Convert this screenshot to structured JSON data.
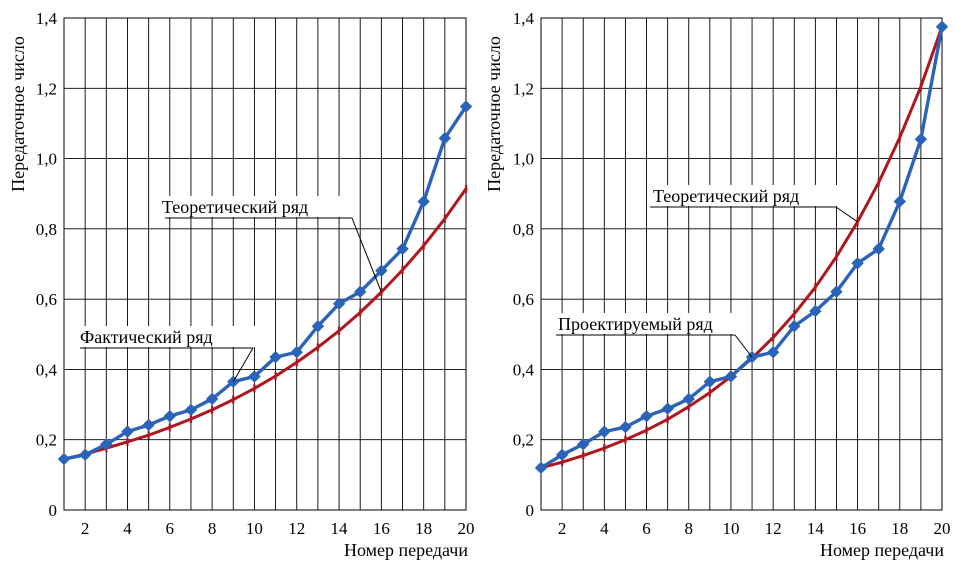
{
  "chart_data": [
    {
      "type": "line",
      "title": "",
      "xlabel": "Номер передачи",
      "ylabel": "Передаточное число",
      "xlim": [
        1,
        20
      ],
      "ylim": [
        0,
        1.4
      ],
      "grid": true,
      "x_ticks": [
        2,
        4,
        6,
        8,
        10,
        12,
        14,
        16,
        18,
        20
      ],
      "x_tick_labels": [
        "2",
        "4",
        "6",
        "8",
        "10",
        "12",
        "14",
        "16",
        "18",
        "20"
      ],
      "y_ticks": [
        0,
        0.2,
        0.4,
        0.6,
        0.8,
        1.0,
        1.2,
        1.4
      ],
      "y_tick_labels": [
        "0",
        "0,2",
        "0,4",
        "0,6",
        "0,8",
        "1,0",
        "1,2",
        "1,4"
      ],
      "x": [
        1,
        2,
        3,
        4,
        5,
        6,
        7,
        8,
        9,
        10,
        11,
        12,
        13,
        14,
        15,
        16,
        17,
        18,
        19,
        20
      ],
      "series": [
        {
          "name": "Теоретический ряд",
          "color": "#b0161e",
          "marker": "dash",
          "values": [
            0.145,
            0.159,
            0.176,
            0.194,
            0.213,
            0.235,
            0.259,
            0.285,
            0.314,
            0.346,
            0.381,
            0.42,
            0.463,
            0.51,
            0.562,
            0.62,
            0.683,
            0.752,
            0.829,
            0.914
          ]
        },
        {
          "name": "Фактический ряд",
          "color": "#2a63b8",
          "marker": "diamond",
          "values": [
            0.145,
            0.157,
            0.187,
            0.223,
            0.242,
            0.267,
            0.285,
            0.316,
            0.365,
            0.38,
            0.435,
            0.449,
            0.523,
            0.587,
            0.621,
            0.681,
            0.743,
            0.878,
            1.058,
            1.148
          ]
        }
      ],
      "annotations": [
        {
          "text": "Теоретический ряд",
          "points_to": "Теоретический ряд",
          "at_x": 16
        },
        {
          "text": "Фактический ряд",
          "points_to": "Фактический ряд",
          "at_x": 9
        }
      ]
    },
    {
      "type": "line",
      "title": "",
      "xlabel": "Номер передачи",
      "ylabel": "Передаточное число",
      "xlim": [
        1,
        20
      ],
      "ylim": [
        0,
        1.4
      ],
      "grid": true,
      "x_ticks": [
        2,
        4,
        6,
        8,
        10,
        12,
        14,
        16,
        18,
        20
      ],
      "x_tick_labels": [
        "2",
        "4",
        "6",
        "8",
        "10",
        "12",
        "14",
        "16",
        "18",
        "20"
      ],
      "y_ticks": [
        0,
        0.2,
        0.4,
        0.6,
        0.8,
        1.0,
        1.2,
        1.4
      ],
      "y_tick_labels": [
        "0",
        "0,2",
        "0,4",
        "0,6",
        "0,8",
        "1,0",
        "1,2",
        "1,4"
      ],
      "x": [
        1,
        2,
        3,
        4,
        5,
        6,
        7,
        8,
        9,
        10,
        11,
        12,
        13,
        14,
        15,
        16,
        17,
        18,
        19,
        20
      ],
      "series": [
        {
          "name": "Теоретический ряд",
          "color": "#b0161e",
          "marker": "dash",
          "values": [
            0.12,
            0.136,
            0.155,
            0.176,
            0.2,
            0.227,
            0.258,
            0.294,
            0.334,
            0.38,
            0.432,
            0.491,
            0.558,
            0.634,
            0.721,
            0.82,
            0.932,
            1.06,
            1.205,
            1.375
          ]
        },
        {
          "name": "Проектируемый ряд",
          "color": "#2a63b8",
          "marker": "diamond",
          "values": [
            0.12,
            0.157,
            0.187,
            0.223,
            0.236,
            0.267,
            0.288,
            0.316,
            0.365,
            0.38,
            0.435,
            0.449,
            0.523,
            0.566,
            0.621,
            0.702,
            0.743,
            0.878,
            1.055,
            1.375
          ]
        }
      ],
      "annotations": [
        {
          "text": "Теоретический ряд",
          "points_to": "Теоретический ряд",
          "at_x": 16
        },
        {
          "text": "Проектируемый ряд",
          "points_to": "Проектируемый ряд",
          "at_x": 11
        }
      ]
    }
  ]
}
